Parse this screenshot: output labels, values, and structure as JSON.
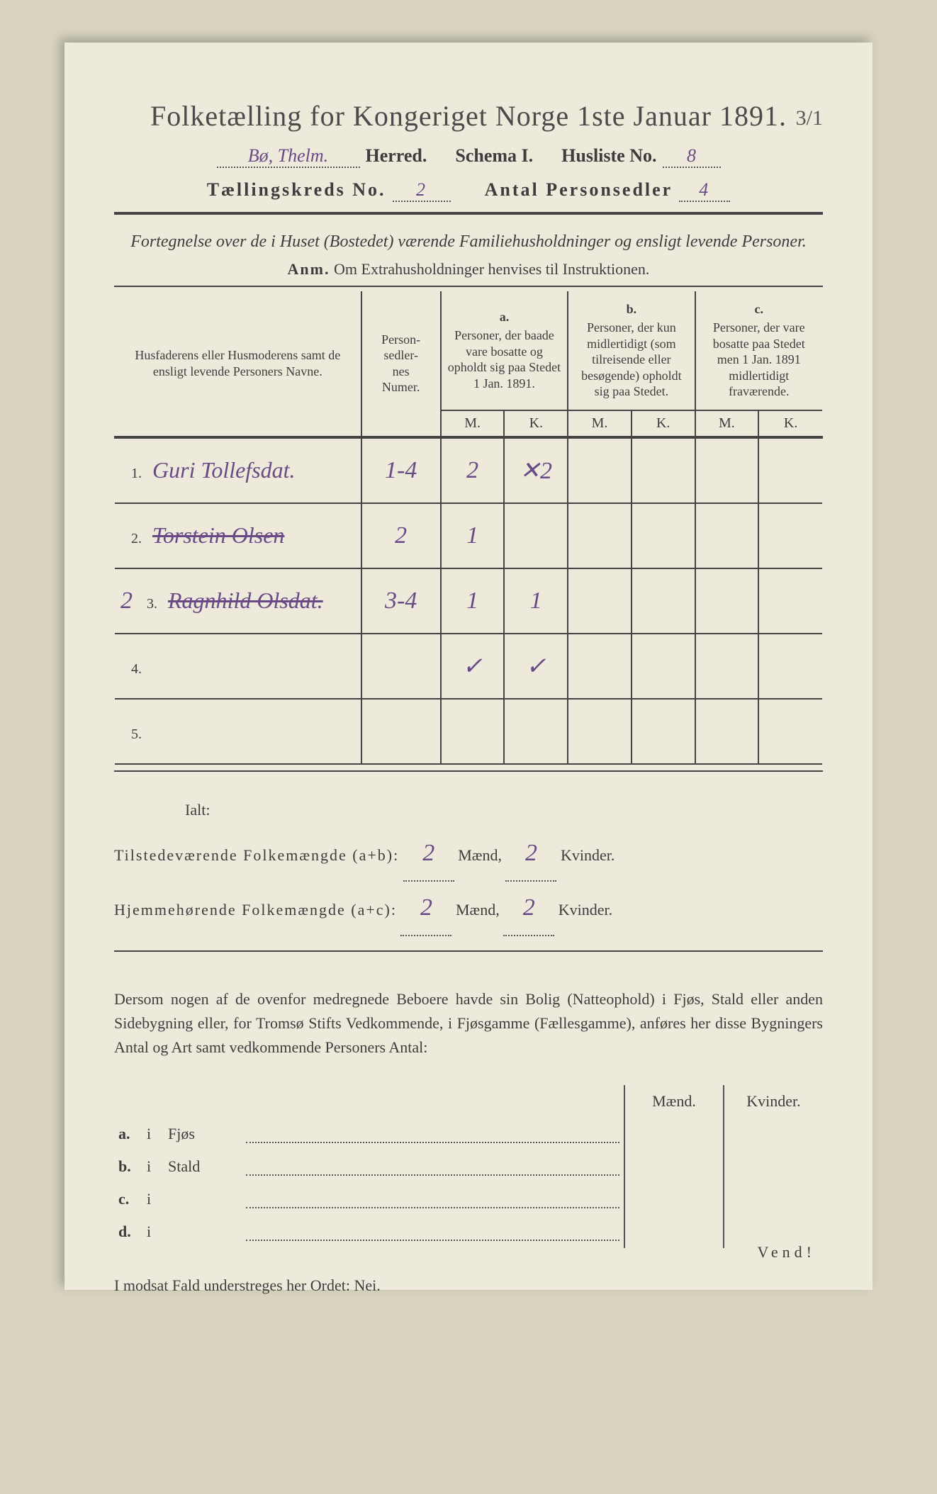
{
  "title": "Folketælling for Kongeriget Norge 1ste Januar 1891.",
  "corner_note": "3/1",
  "line2": {
    "herred_value": "Bø, Thelm.",
    "herred_label": "Herred.",
    "schema_label": "Schema I.",
    "husliste_label": "Husliste No.",
    "husliste_value": "8"
  },
  "line3": {
    "kreds_label": "Tællingskreds No.",
    "kreds_value": "2",
    "antal_label": "Antal Personsedler",
    "antal_value": "4"
  },
  "subtitle": "Fortegnelse over de i Huset (Bostedet) værende Familiehusholdninger og ensligt levende Personer.",
  "anm_label": "Anm.",
  "anm_text": "Om Extrahusholdninger henvises til Instruktionen.",
  "columns": {
    "name": "Husfaderens eller Husmoderens samt de ensligt levende Personers Navne.",
    "numer": "Person-\nsedler-\nnes\nNumer.",
    "a_label": "a.",
    "a": "Personer, der baade vare bosatte og opholdt sig paa Stedet 1 Jan. 1891.",
    "b_label": "b.",
    "b": "Personer, der kun midlertidigt (som tilreisende eller besøgende) opholdt sig paa Stedet.",
    "c_label": "c.",
    "c": "Personer, der vare bosatte paa Stedet men 1 Jan. 1891 midlertidigt fraværende.",
    "m": "M.",
    "k": "K."
  },
  "rows": [
    {
      "num_print": "1.",
      "num_hand": "",
      "name": "Guri Tollefsdat.",
      "struck": false,
      "numer": "1-4",
      "a_m": "2",
      "a_k": "✕2",
      "b_m": "",
      "b_k": "",
      "c_m": "",
      "c_k": ""
    },
    {
      "num_print": "2.",
      "num_hand": "",
      "name": "Torstein Olsen",
      "struck": true,
      "numer": "2",
      "a_m": "1",
      "a_k": "",
      "b_m": "",
      "b_k": "",
      "c_m": "",
      "c_k": ""
    },
    {
      "num_print": "3.",
      "num_hand": "2",
      "name": "Ragnhild Olsdat.",
      "struck": true,
      "numer": "3-4",
      "a_m": "1",
      "a_k": "1",
      "b_m": "",
      "b_k": "",
      "c_m": "",
      "c_k": ""
    },
    {
      "num_print": "4.",
      "num_hand": "",
      "name": "",
      "struck": false,
      "numer": "",
      "a_m": "✓",
      "a_k": "✓",
      "b_m": "",
      "b_k": "",
      "c_m": "",
      "c_k": ""
    },
    {
      "num_print": "5.",
      "num_hand": "",
      "name": "",
      "struck": false,
      "numer": "",
      "a_m": "",
      "a_k": "",
      "b_m": "",
      "b_k": "",
      "c_m": "",
      "c_k": ""
    }
  ],
  "totals": {
    "ialt": "Ialt:",
    "line1_label": "Tilstedeværende Folkemængde (a+b):",
    "line1_m": "2",
    "line1_k": "2",
    "line2_label": "Hjemmehørende Folkemængde (a+c):",
    "line2_m": "2",
    "line2_k": "2",
    "maend": "Mænd,",
    "kvinder": "Kvinder."
  },
  "para": "Dersom nogen af de ovenfor medregnede Beboere havde sin Bolig (Natteophold) i Fjøs, Stald eller anden Sidebygning eller, for Tromsø Stifts Vedkommende, i Fjøsgamme (Fællesgamme), anføres her disse Bygningers Antal og Art samt vedkommende Personers Antal:",
  "buildings": {
    "maend": "Mænd.",
    "kvinder": "Kvinder.",
    "rows": [
      {
        "pre": "a.",
        "i": "i",
        "label": "Fjøs"
      },
      {
        "pre": "b.",
        "i": "i",
        "label": "Stald"
      },
      {
        "pre": "c.",
        "i": "i",
        "label": ""
      },
      {
        "pre": "d.",
        "i": "i",
        "label": ""
      }
    ]
  },
  "footer": "I modsat Fald understreges her Ordet: Nei.",
  "vend": "Vend!",
  "colors": {
    "paper": "#edeadb",
    "bg": "#d8d4c0",
    "ink": "#3d3d3d",
    "handwriting": "#6a4a85"
  }
}
